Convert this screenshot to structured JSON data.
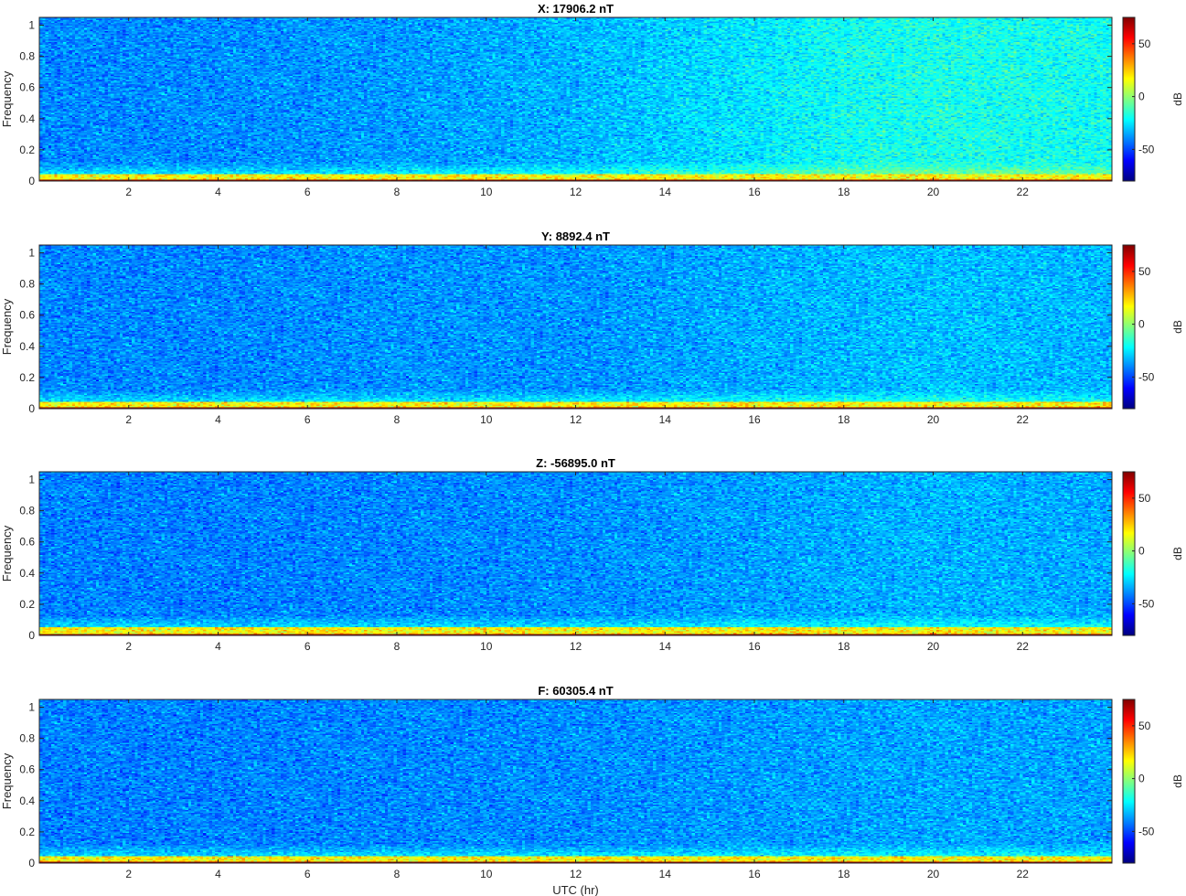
{
  "chart_data": [
    {
      "type": "heatmap",
      "title": "X: 17906.2 nT",
      "ylabel": "Frequency",
      "xlabel": "",
      "xlim": [
        0,
        24
      ],
      "ylim": [
        0,
        1.05
      ],
      "xticks": [
        "2",
        "4",
        "6",
        "8",
        "10",
        "12",
        "14",
        "16",
        "18",
        "20",
        "22"
      ],
      "yticks": [
        "0",
        "0.2",
        "0.4",
        "0.6",
        "0.8",
        "1"
      ],
      "colorbar": {
        "label": "dB",
        "range": [
          -80,
          75
        ],
        "ticks": [
          "50",
          "0",
          "-50"
        ],
        "colormap": "jet"
      },
      "noise_floor_db": {
        "hours": [
          0,
          4,
          8,
          12,
          14,
          16,
          18,
          20,
          24
        ],
        "db": [
          -40,
          -39,
          -37,
          -33,
          -29,
          -25,
          -20,
          -18,
          -20
        ]
      },
      "band_peak_db": 75,
      "band_top_freq": 0.04
    },
    {
      "type": "heatmap",
      "title": "Y: 8892.4 nT",
      "ylabel": "Frequency",
      "xlabel": "",
      "xlim": [
        0,
        24
      ],
      "ylim": [
        0,
        1.05
      ],
      "xticks": [
        "2",
        "4",
        "6",
        "8",
        "10",
        "12",
        "14",
        "16",
        "18",
        "20",
        "22"
      ],
      "yticks": [
        "0",
        "0.2",
        "0.4",
        "0.6",
        "0.8",
        "1"
      ],
      "colorbar": {
        "label": "dB",
        "range": [
          -80,
          75
        ],
        "ticks": [
          "50",
          "0",
          "-50"
        ],
        "colormap": "jet"
      },
      "noise_floor_db": {
        "hours": [
          0,
          4,
          8,
          12,
          16,
          20,
          24
        ],
        "db": [
          -40,
          -40,
          -38,
          -38,
          -34,
          -31,
          -33
        ]
      },
      "band_peak_db": 75,
      "band_top_freq": 0.04
    },
    {
      "type": "heatmap",
      "title": "Z: -56895.0 nT",
      "ylabel": "Frequency",
      "xlabel": "",
      "xlim": [
        0,
        24
      ],
      "ylim": [
        0,
        1.05
      ],
      "xticks": [
        "2",
        "4",
        "6",
        "8",
        "10",
        "12",
        "14",
        "16",
        "18",
        "20",
        "22"
      ],
      "yticks": [
        "0",
        "0.2",
        "0.4",
        "0.6",
        "0.8",
        "1"
      ],
      "colorbar": {
        "label": "dB",
        "range": [
          -80,
          75
        ],
        "ticks": [
          "50",
          "0",
          "-50"
        ],
        "colormap": "jet"
      },
      "noise_floor_db": {
        "hours": [
          0,
          4,
          8,
          12,
          16,
          20,
          24
        ],
        "db": [
          -41,
          -41,
          -40,
          -39,
          -36,
          -33,
          -35
        ]
      },
      "band_peak_db": 75,
      "band_top_freq": 0.05
    },
    {
      "type": "heatmap",
      "title": "F: 60305.4 nT",
      "ylabel": "Frequency",
      "xlabel": "UTC (hr)",
      "xlim": [
        0,
        24
      ],
      "ylim": [
        0,
        1.05
      ],
      "xticks": [
        "2",
        "4",
        "6",
        "8",
        "10",
        "12",
        "14",
        "16",
        "18",
        "20",
        "22"
      ],
      "yticks": [
        "0",
        "0.2",
        "0.4",
        "0.6",
        "0.8",
        "1"
      ],
      "colorbar": {
        "label": "dB",
        "range": [
          -80,
          75
        ],
        "ticks": [
          "50",
          "0",
          "-50"
        ],
        "colormap": "jet"
      },
      "noise_floor_db": {
        "hours": [
          0,
          4,
          8,
          12,
          16,
          20,
          24
        ],
        "db": [
          -41,
          -41,
          -40,
          -39,
          -37,
          -35,
          -36
        ]
      },
      "band_peak_db": 75,
      "band_top_freq": 0.04
    }
  ]
}
